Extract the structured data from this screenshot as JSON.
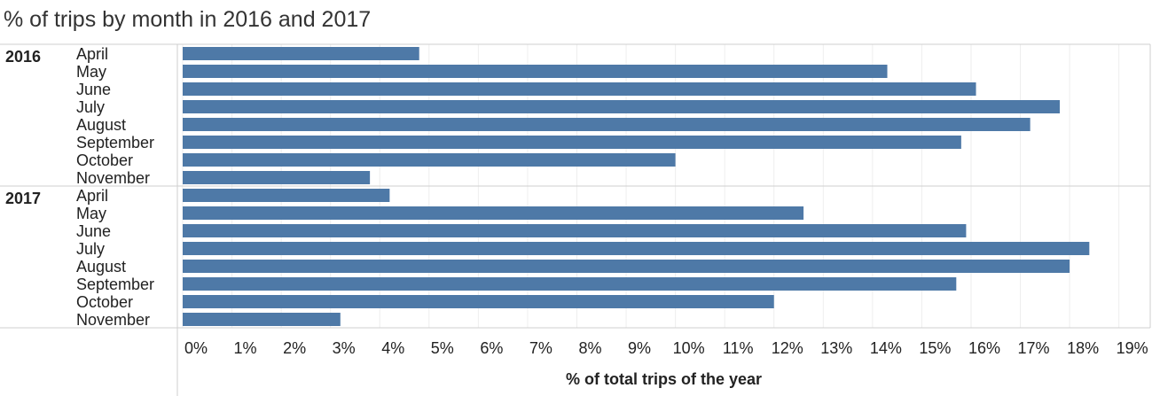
{
  "chart_data": {
    "type": "bar",
    "orientation": "horizontal",
    "title": "% of trips by month in 2016 and 2017",
    "xlabel": "% of total trips of the year",
    "xlim": [
      0,
      19.5
    ],
    "x_ticks": [
      "0%",
      "1%",
      "2%",
      "3%",
      "4%",
      "5%",
      "6%",
      "7%",
      "8%",
      "9%",
      "10%",
      "11%",
      "12%",
      "13%",
      "14%",
      "15%",
      "16%",
      "17%",
      "18%",
      "19%"
    ],
    "grid": true,
    "groups": [
      {
        "name": "2016",
        "categories": [
          "April",
          "May",
          "June",
          "July",
          "August",
          "September",
          "October",
          "November"
        ],
        "values": [
          4.8,
          14.3,
          16.1,
          17.8,
          17.2,
          15.8,
          10.0,
          3.8
        ]
      },
      {
        "name": "2017",
        "categories": [
          "April",
          "May",
          "June",
          "July",
          "August",
          "September",
          "October",
          "November"
        ],
        "values": [
          4.2,
          12.6,
          15.9,
          18.4,
          18.0,
          15.7,
          12.0,
          3.2
        ]
      }
    ],
    "bar_color": "#4e79a7"
  }
}
